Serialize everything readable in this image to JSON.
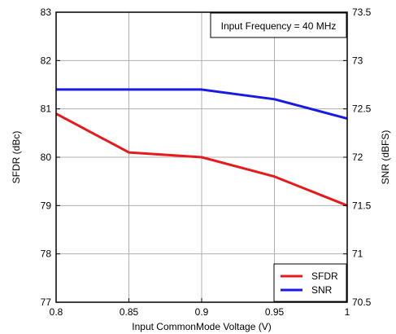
{
  "chart_data": {
    "type": "line",
    "x_ticks": [
      "0.8",
      "0.85",
      "0.9",
      "0.95",
      "1"
    ],
    "y_left_ticks": [
      "77",
      "78",
      "79",
      "80",
      "81",
      "82",
      "83"
    ],
    "y_right_ticks": [
      "70.5",
      "71",
      "71.5",
      "72",
      "72.5",
      "73",
      "73.5"
    ],
    "xlabel": "Input CommonMode Voltage (V)",
    "ylabel_left": "SFDR (dBc)",
    "ylabel_right": "SNR (dBFS)",
    "annotation": "Input Frequency = 40 MHz",
    "xlim": [
      0.8,
      1.0
    ],
    "ylim_left": [
      77,
      83
    ],
    "ylim_right": [
      70.5,
      73.5
    ],
    "grid": true,
    "legend_position": "bottom-right",
    "series": [
      {
        "name": "SFDR",
        "axis": "left",
        "color": "#e8191b",
        "x": [
          0.8,
          0.85,
          0.9,
          0.95,
          1.0
        ],
        "y": [
          80.9,
          80.1,
          80.0,
          79.6,
          79.0
        ]
      },
      {
        "name": "SNR",
        "axis": "right",
        "color": "#1a1ae6",
        "x": [
          0.8,
          0.85,
          0.9,
          0.95,
          1.0
        ],
        "y": [
          72.7,
          72.7,
          72.7,
          72.6,
          72.4
        ]
      }
    ]
  }
}
